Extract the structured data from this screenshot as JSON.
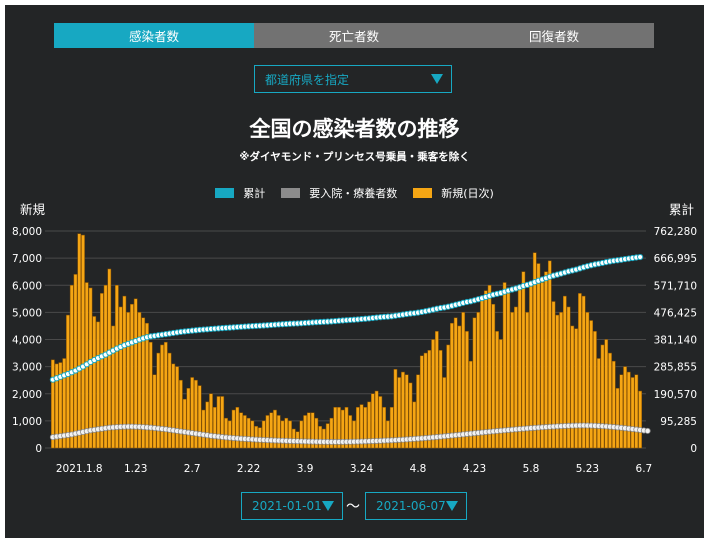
{
  "tabs": [
    {
      "label": "感染者数",
      "active": true
    },
    {
      "label": "死亡者数",
      "active": false
    },
    {
      "label": "回復者数",
      "active": false
    }
  ],
  "prefecture_select": {
    "placeholder": "都道府県を指定"
  },
  "title": "全国の感染者数の推移",
  "subtitle": "※ダイヤモンド・プリンセス号乗員・乗客を除く",
  "legend": [
    {
      "label": "累計",
      "color": "#17a8c2"
    },
    {
      "label": "要入院・療養者数",
      "color": "#8c8c8c"
    },
    {
      "label": "新規(日次)",
      "color": "#f5a614"
    }
  ],
  "left_axis_title": "新規",
  "right_axis_title": "累計",
  "date_range": {
    "start": "2021-01-01",
    "end": "2021-06-07",
    "separator": "〜"
  },
  "colors": {
    "accent": "#17a8c2",
    "bar": "#f5a614",
    "bar_edge": "#8a5200",
    "background": "#232526",
    "tab_inactive": "#727272",
    "grid": "#4a4a4a",
    "cumulative_marker": "#ffffff"
  },
  "chart_data": {
    "type": "bar",
    "x_tick_labels": [
      "2021.1.8",
      "1.23",
      "2.7",
      "2.22",
      "3.9",
      "3.24",
      "4.8",
      "4.23",
      "5.8",
      "5.23",
      "6.7"
    ],
    "x_tick_dates": [
      "2021-01-08",
      "2021-01-23",
      "2021-02-07",
      "2021-02-22",
      "2021-03-09",
      "2021-03-24",
      "2021-04-08",
      "2021-04-23",
      "2021-05-08",
      "2021-05-23",
      "2021-06-07"
    ],
    "left_axis": {
      "ticks": [
        0,
        1000,
        2000,
        3000,
        4000,
        5000,
        6000,
        7000,
        8000
      ],
      "tick_labels": [
        "0",
        "1,000",
        "2,000",
        "3,000",
        "4,000",
        "5,000",
        "6,000",
        "7,000",
        "8,000"
      ],
      "ylim": [
        0,
        8000
      ]
    },
    "right_axis": {
      "ticks": [
        0,
        95285,
        190570,
        285855,
        381140,
        476425,
        571710,
        666995,
        762280
      ],
      "tick_labels": [
        "0",
        "95,285",
        "190,570",
        "285,855",
        "381,140",
        "476,425",
        "571,710",
        "666,995",
        "762,280"
      ],
      "ylim": [
        0,
        762280
      ]
    },
    "grid": true,
    "start_date": "2021-01-01",
    "series": [
      {
        "name": "新規(日次)",
        "type": "bar",
        "axis": "left",
        "values": [
          3250,
          3100,
          3150,
          3300,
          4900,
          6000,
          6400,
          7900,
          7850,
          6100,
          5900,
          4850,
          4650,
          5700,
          6000,
          6600,
          4500,
          6000,
          5200,
          5600,
          5000,
          5300,
          5500,
          5000,
          4800,
          4600,
          3900,
          2700,
          3500,
          3800,
          3900,
          3500,
          3100,
          3000,
          2500,
          1800,
          2200,
          2600,
          2500,
          2300,
          1400,
          1700,
          2000,
          1500,
          1900,
          1900,
          1100,
          1000,
          1400,
          1500,
          1300,
          1200,
          1100,
          1000,
          800,
          750,
          1000,
          1200,
          1300,
          1400,
          1200,
          1000,
          1100,
          1000,
          700,
          600,
          1000,
          1200,
          1300,
          1300,
          1100,
          800,
          700,
          900,
          1100,
          1500,
          1500,
          1400,
          1500,
          1200,
          1000,
          1500,
          1600,
          1500,
          1700,
          2000,
          2100,
          1900,
          1500,
          1000,
          1500,
          2900,
          2600,
          2800,
          2700,
          2400,
          1700,
          2700,
          3400,
          3500,
          3600,
          4000,
          4300,
          3600,
          2600,
          3800,
          4600,
          4800,
          4500,
          5000,
          4300,
          3200,
          4800,
          5000,
          5500,
          5800,
          6000,
          5300,
          4300,
          4000,
          6100,
          5900,
          5000,
          5200,
          6000,
          6500,
          5000,
          6100,
          7200,
          6800,
          6100,
          6500,
          6900,
          5400,
          4900,
          5000,
          5600,
          5200,
          4500,
          4400,
          5700,
          5600,
          5000,
          4700,
          4300,
          3300,
          3800,
          4000,
          3500,
          3200,
          2200,
          2700,
          3000,
          2800,
          2600,
          2700,
          2100
        ]
      },
      {
        "name": "要入院・療養者数",
        "type": "line",
        "axis": "left",
        "values": [
          400,
          420,
          440,
          460,
          480,
          500,
          530,
          560,
          590,
          620,
          650,
          670,
          690,
          710,
          730,
          750,
          760,
          770,
          780,
          785,
          790,
          790,
          785,
          780,
          770,
          760,
          750,
          735,
          720,
          705,
          690,
          670,
          650,
          630,
          610,
          590,
          570,
          550,
          530,
          510,
          490,
          470,
          450,
          435,
          420,
          405,
          390,
          378,
          366,
          355,
          345,
          336,
          327,
          318,
          310,
          303,
          296,
          290,
          284,
          278,
          273,
          268,
          263,
          258,
          254,
          250,
          246,
          242,
          238,
          235,
          232,
          230,
          228,
          226,
          225,
          225,
          225,
          226,
          228,
          230,
          233,
          236,
          240,
          245,
          250,
          255,
          260,
          266,
          272,
          278,
          285,
          292,
          300,
          308,
          317,
          326,
          336,
          346,
          357,
          368,
          380,
          392,
          405,
          418,
          432,
          446,
          460,
          474,
          488,
          502,
          516,
          530,
          544,
          558,
          572,
          586,
          600,
          613,
          626,
          639,
          652,
          664,
          676,
          688,
          700,
          711,
          722,
          733,
          744,
          754,
          764,
          773,
          782,
          790,
          798,
          805,
          812,
          818,
          823,
          828,
          830,
          830,
          828,
          825,
          820,
          813,
          805,
          795,
          784,
          772,
          759,
          745,
          730,
          714,
          698,
          681,
          664,
          647,
          630
        ]
      },
      {
        "name": "累計",
        "type": "line",
        "axis": "right",
        "values": [
          240000,
          245000,
          250000,
          255000,
          260000,
          266000,
          272000,
          279000,
          286000,
          294000,
          302000,
          309000,
          316000,
          322000,
          328000,
          335000,
          342000,
          349000,
          355000,
          361000,
          366000,
          371000,
          376000,
          381000,
          385000,
          389000,
          392000,
          394000,
          396000,
          398000,
          400000,
          402000,
          404000,
          406000,
          408000,
          409500,
          410800,
          412200,
          413600,
          415000,
          416000,
          417000,
          418200,
          419200,
          420200,
          421200,
          422000,
          422800,
          423800,
          424800,
          425700,
          426600,
          427400,
          428200,
          428900,
          429500,
          430300,
          431200,
          432100,
          433100,
          434000,
          434800,
          435600,
          436400,
          437000,
          437500,
          438300,
          439200,
          440100,
          441100,
          442000,
          442600,
          443200,
          443900,
          444700,
          445800,
          446900,
          447900,
          449000,
          449900,
          450600,
          451700,
          452900,
          454000,
          455200,
          456700,
          458200,
          459600,
          460700,
          461500,
          462600,
          464700,
          466600,
          468600,
          470600,
          472400,
          473600,
          475600,
          478000,
          480500,
          483100,
          486000,
          489100,
          491700,
          493600,
          496300,
          499600,
          503100,
          506300,
          509900,
          513000,
          515300,
          518800,
          522400,
          526300,
          530400,
          534700,
          538500,
          541600,
          544500,
          548900,
          553100,
          556700,
          560400,
          564700,
          569400,
          573000,
          577400,
          582600,
          587500,
          591900,
          596600,
          601600,
          605500,
          609000,
          612600,
          616600,
          620400,
          623600,
          626800,
          630900,
          634900,
          638500,
          641900,
          645000,
          647400,
          650100,
          653000,
          655500,
          657800,
          659400,
          661300,
          663500,
          665500,
          667400,
          669300,
          670800
        ]
      }
    ]
  }
}
